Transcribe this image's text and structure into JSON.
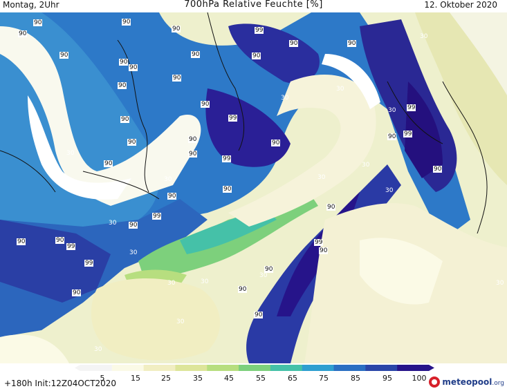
{
  "header": {
    "left": "Montag, 2Uhr",
    "title": "700hPa Relative Feuchte [%]",
    "right": "12. Oktober 2020"
  },
  "map": {
    "labels_dark": [
      {
        "text": "90"
      },
      {
        "text": "90"
      },
      {
        "text": "90"
      },
      {
        "text": "90"
      },
      {
        "text": "90"
      },
      {
        "text": "90"
      },
      {
        "text": "90"
      },
      {
        "text": "90"
      },
      {
        "text": "99"
      },
      {
        "text": "90"
      },
      {
        "text": "90"
      },
      {
        "text": "90"
      },
      {
        "text": "90"
      },
      {
        "text": "90"
      },
      {
        "text": "99"
      },
      {
        "text": "90"
      },
      {
        "text": "90"
      },
      {
        "text": "90"
      },
      {
        "text": "99"
      },
      {
        "text": "90"
      },
      {
        "text": "90"
      },
      {
        "text": "90"
      },
      {
        "text": "90"
      },
      {
        "text": "90"
      },
      {
        "text": "90"
      },
      {
        "text": "99"
      },
      {
        "text": "90"
      },
      {
        "text": "90"
      },
      {
        "text": "90"
      },
      {
        "text": "99"
      },
      {
        "text": "90"
      },
      {
        "text": "99"
      },
      {
        "text": "99"
      },
      {
        "text": "90"
      },
      {
        "text": "90"
      },
      {
        "text": "90"
      },
      {
        "text": "90"
      },
      {
        "text": "99"
      },
      {
        "text": "90"
      },
      {
        "text": "99"
      },
      {
        "text": "90"
      },
      {
        "text": "90"
      }
    ],
    "labels_light": [
      {
        "text": "30"
      },
      {
        "text": "30"
      },
      {
        "text": "30"
      },
      {
        "text": "30"
      },
      {
        "text": "30"
      },
      {
        "text": "30"
      },
      {
        "text": "30"
      },
      {
        "text": "30"
      },
      {
        "text": "30"
      },
      {
        "text": "30"
      },
      {
        "text": "30"
      },
      {
        "text": "30"
      },
      {
        "text": "30"
      },
      {
        "text": "30"
      },
      {
        "text": "30"
      },
      {
        "text": "30"
      },
      {
        "text": "30"
      }
    ]
  },
  "legend": {
    "ticks": [
      "5",
      "15",
      "25",
      "35",
      "45",
      "55",
      "65",
      "75",
      "85",
      "95",
      "100"
    ],
    "colors": [
      "#f4f4f4",
      "#fbfae6",
      "#f1eec2",
      "#dde59a",
      "#b7de7f",
      "#7dd07c",
      "#45c1a8",
      "#2e9fd0",
      "#2a6fc2",
      "#2a46a8",
      "#26148a"
    ]
  },
  "footer": {
    "init": "+180h  Init:12Z04OCT2020",
    "logo_name": "meteopool",
    "logo_tld": ".org"
  }
}
